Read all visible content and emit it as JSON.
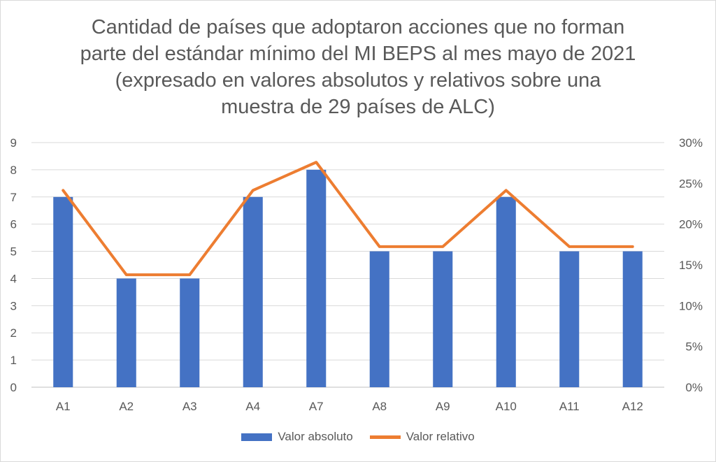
{
  "chart_data": {
    "type": "bar+line",
    "title_lines": [
      "Cantidad de países que adoptaron acciones que no forman",
      "parte del estándar mínimo del MI BEPS al mes mayo de 2021",
      "(expresado en valores absolutos y relativos sobre una",
      "muestra de 29 países de ALC)"
    ],
    "categories": [
      "A1",
      "A2",
      "A3",
      "A4",
      "A7",
      "A8",
      "A9",
      "A10",
      "A11",
      "A12"
    ],
    "series": [
      {
        "name": "Valor absoluto",
        "type": "bar",
        "axis": "left",
        "color": "#4472c4",
        "values": [
          7,
          4,
          4,
          7,
          8,
          5,
          5,
          7,
          5,
          5
        ]
      },
      {
        "name": "Valor relativo",
        "type": "line",
        "axis": "right",
        "color": "#ed7d31",
        "values": [
          0.2414,
          0.1379,
          0.1379,
          0.2414,
          0.2759,
          0.1724,
          0.1724,
          0.2414,
          0.1724,
          0.1724
        ]
      }
    ],
    "y_left": {
      "min": 0,
      "max": 9,
      "ticks": [
        "0",
        "1",
        "2",
        "3",
        "4",
        "5",
        "6",
        "7",
        "8",
        "9"
      ]
    },
    "y_right": {
      "min": 0,
      "max": 0.3,
      "ticks": [
        "0%",
        "5%",
        "10%",
        "15%",
        "20%",
        "25%",
        "30%"
      ]
    },
    "grid": true,
    "legend_position": "bottom"
  }
}
